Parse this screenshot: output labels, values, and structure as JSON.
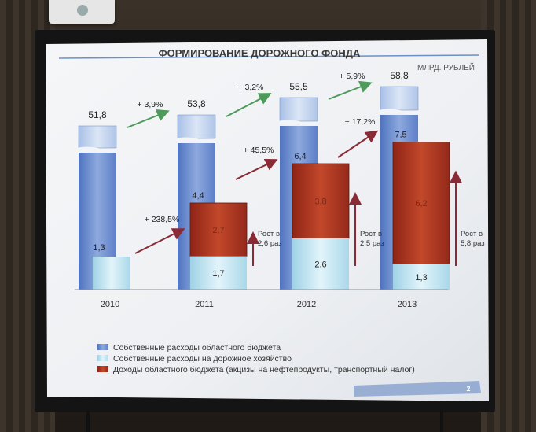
{
  "slide": {
    "title": "ФОРМИРОВАНИЕ ДОРОЖНОГО ФОНДА",
    "units": "МЛРД. РУБЛЕЙ",
    "page_number": "2"
  },
  "colors": {
    "own_regional": "#6f8fd0",
    "own_road": "#bfe6f2",
    "income": "#b03820",
    "arrow_green": "#4e9a5a",
    "arrow_red": "#8a2a35"
  },
  "chart_data": {
    "type": "bar",
    "categories": [
      "2010",
      "2011",
      "2012",
      "2013"
    ],
    "series": [
      {
        "name": "Собственные расходы областного бюджета",
        "values": [
          51.8,
          53.8,
          55.5,
          58.8
        ],
        "labels": [
          "51,8",
          "53,8",
          "55,5",
          "58,8"
        ]
      },
      {
        "name": "Собственные расходы на дорожное хозяйство",
        "values": [
          1.3,
          4.4,
          6.4,
          7.5
        ],
        "labels": [
          "1,3",
          "4,4",
          "6,4",
          "7,5"
        ]
      },
      {
        "name": "Доходы областного бюджета (акцизы на нефтепродукты, транспортный налог)",
        "values": [
          null,
          2.7,
          3.8,
          6.2
        ],
        "labels": [
          "",
          "2,7",
          "3,8",
          "6,2"
        ]
      }
    ],
    "road_base_labels": [
      "1,3",
      "1,7",
      "2,6",
      "1,3"
    ],
    "growth_top": [
      "+ 3,9%",
      "+ 3,2%",
      "+ 5,9%"
    ],
    "growth_road": [
      "+ 238,5%",
      "+ 45,5%",
      "+ 17,2%"
    ],
    "growth_income": [
      {
        "line1": "Рост в",
        "line2": "2,6 раз"
      },
      {
        "line1": "Рост в",
        "line2": "2,5 раз"
      },
      {
        "line1": "Рост в",
        "line2": "5,8 раз"
      }
    ],
    "axis_broken": true
  }
}
